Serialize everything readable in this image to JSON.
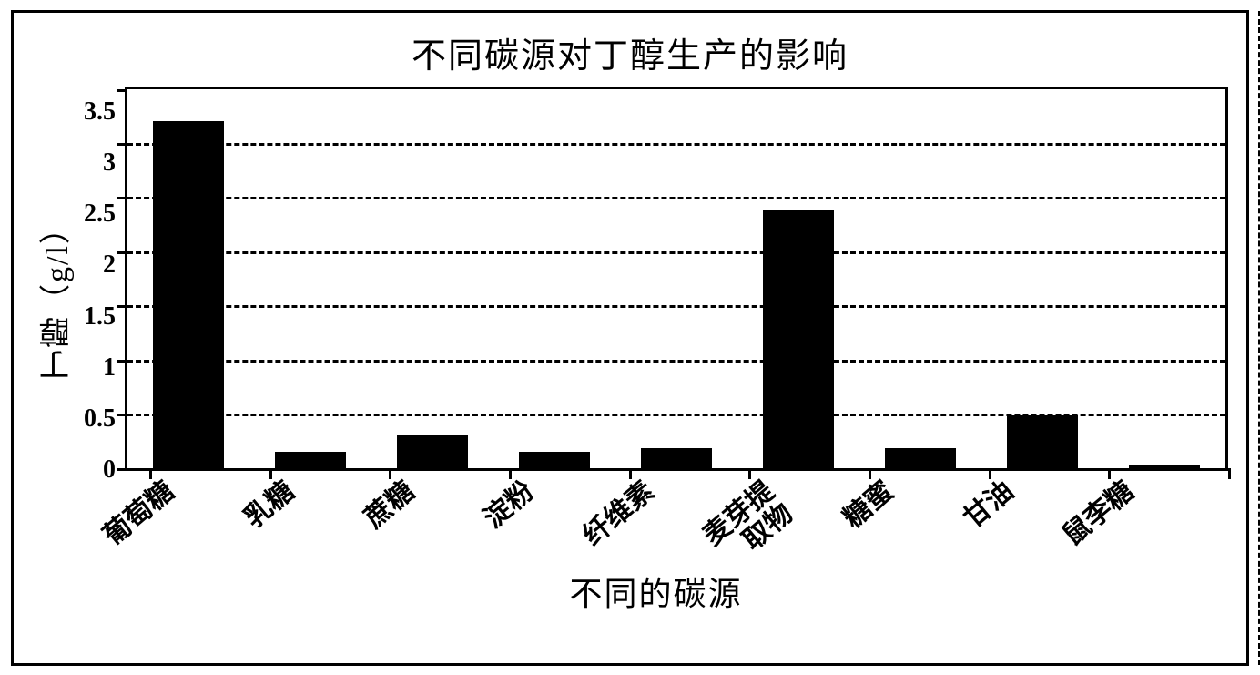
{
  "chart": {
    "type": "bar",
    "title": "不同碳源对丁醇生产的影响",
    "ylabel": "丁醇（g/l）",
    "xlabel": "不同的碳源",
    "title_fontsize": 38,
    "label_fontsize": 34,
    "xlabel_fontsize": 36,
    "tick_fontsize": 28,
    "xtick_fontsize": 30,
    "ylim": [
      0,
      3.5
    ],
    "ytick_step": 0.5,
    "yticks": [
      "3.5",
      "3",
      "2.5",
      "2",
      "1.5",
      "1",
      "0.5",
      "0"
    ],
    "categories": [
      "葡萄糖",
      "乳糖",
      "蔗糖",
      "淀粉",
      "纤维素",
      "麦芽提取物",
      "糖蜜",
      "甘油",
      "鼠李糖"
    ],
    "values": [
      3.2,
      0.15,
      0.3,
      0.15,
      0.18,
      2.38,
      0.18,
      0.48,
      0.02
    ],
    "bar_color": "#000000",
    "bar_width": 0.58,
    "background_color": "#ffffff",
    "border_color": "#000000",
    "grid_style": "dashed",
    "grid_color": "#000000",
    "xtick_rotation_deg": -40
  }
}
